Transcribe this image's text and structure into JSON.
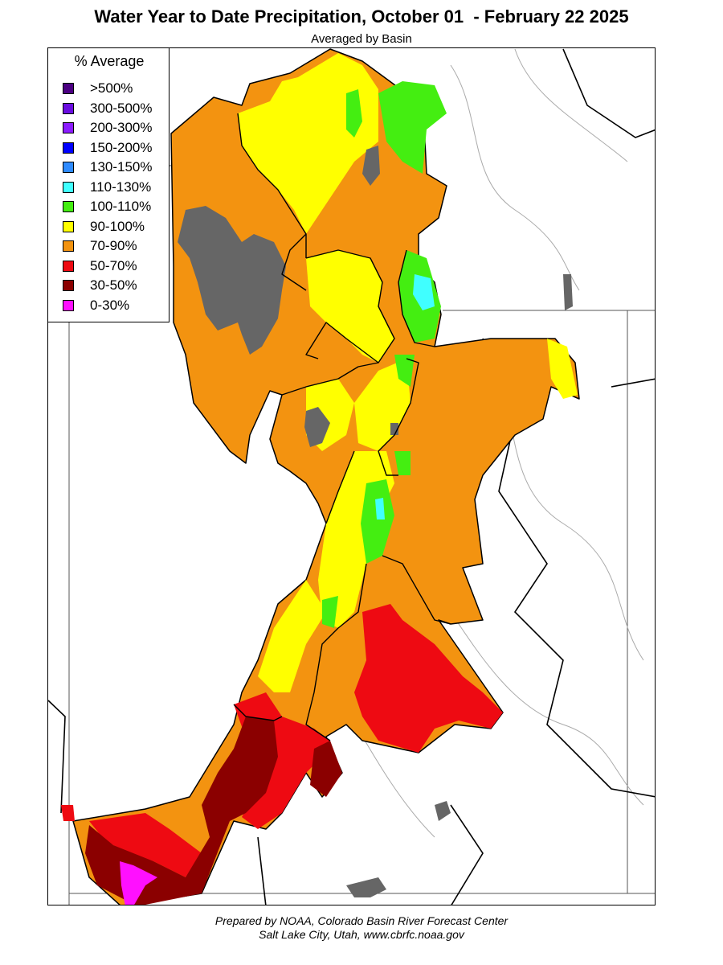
{
  "title": "Water Year to Date Precipitation, October 01  - February 22 2025",
  "subtitle": "Averaged by Basin",
  "legend": {
    "title": "% Average",
    "items": [
      {
        "label": ">500%",
        "color": "#4b0082"
      },
      {
        "label": "300-500%",
        "color": "#6a0de0"
      },
      {
        "label": "200-300%",
        "color": "#8b1cff"
      },
      {
        "label": "150-200%",
        "color": "#0000ff"
      },
      {
        "label": "130-150%",
        "color": "#2e8bff"
      },
      {
        "label": "110-130%",
        "color": "#40ffff"
      },
      {
        "label": "100-110%",
        "color": "#44ee11"
      },
      {
        "label": "90-100%",
        "color": "#ffff00"
      },
      {
        "label": "70-90%",
        "color": "#f39310"
      },
      {
        "label": "50-70%",
        "color": "#ee0a12"
      },
      {
        "label": "30-50%",
        "color": "#8b0000"
      },
      {
        "label": "0-30%",
        "color": "#ff10ff"
      }
    ]
  },
  "footer": {
    "line1": "Prepared by NOAA, Colorado Basin River Forecast Center",
    "line2": "Salt Lake City, Utah, www.cbrfc.noaa.gov"
  }
}
